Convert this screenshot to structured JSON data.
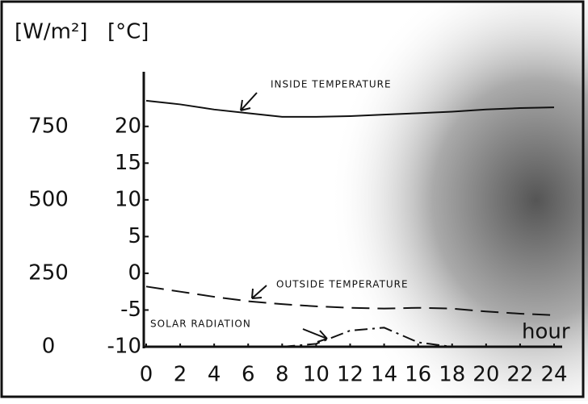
{
  "chart_data": {
    "type": "line",
    "y2_label": "[W/m²]",
    "y_label": "[°C]",
    "x_label": "hour",
    "annotations": [
      "INSIDE TEMPERATURE",
      "OUTSIDE TEMPERATURE",
      "SOLAR RADIATION"
    ],
    "x": [
      0,
      2,
      4,
      6,
      8,
      10,
      12,
      14,
      16,
      18,
      20,
      22,
      24
    ],
    "xlim": [
      0,
      24
    ],
    "xticks": [
      0,
      2,
      4,
      6,
      8,
      10,
      12,
      14,
      16,
      18,
      20,
      22,
      24
    ],
    "ylim": [
      -10,
      27
    ],
    "yticks": [
      -10,
      -5,
      0,
      5,
      10,
      15,
      20
    ],
    "y2lim": [
      0,
      925
    ],
    "y2ticks": [
      0,
      250,
      500,
      750
    ],
    "series": [
      {
        "name": "INSIDE TEMPERATURE",
        "color": "#111111",
        "line_style": "solid",
        "values": [
          23.5,
          23,
          22.3,
          21.8,
          21.3,
          21.3,
          21.4,
          21.6,
          21.8,
          22.0,
          22.3,
          22.5,
          22.6
        ]
      },
      {
        "name": "OUTSIDE TEMPERATURE",
        "color": "#111111",
        "line_style": "dashed",
        "values": [
          -1.8,
          -2.5,
          -3.2,
          -3.8,
          -4.2,
          -4.5,
          -4.7,
          -4.8,
          -4.7,
          -4.8,
          -5.2,
          -5.5,
          -5.7
        ]
      },
      {
        "name": "SOLAR RADIATION",
        "color": "#111111",
        "line_style": "dashdot",
        "axis": "y2",
        "values": [
          null,
          null,
          null,
          null,
          0,
          10,
          55,
          65,
          15,
          0,
          null,
          null,
          null
        ]
      }
    ]
  }
}
